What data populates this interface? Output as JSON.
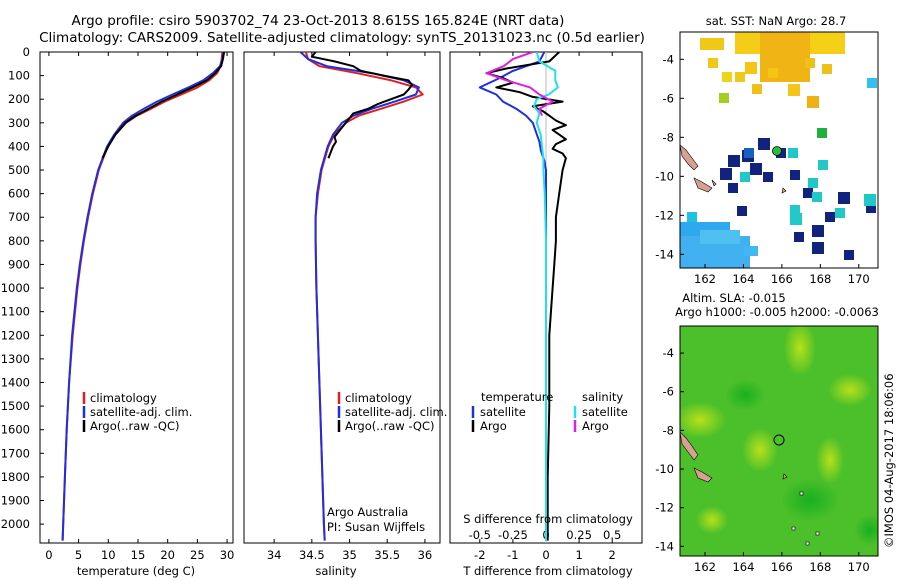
{
  "header": {
    "line1": "Argo profile: csiro 5903702_74 23-Oct-2013 8.615S 165.824E (NRT data)",
    "line2": "Climatology: CARS2009. Satellite-adjusted climatology: synTS_20131023.nc (0.5d earlier)"
  },
  "colors": {
    "climatology": "#e02020",
    "satellite": "#1f2fe0",
    "argo": "#000000",
    "sat_salinity": "#20e0f0",
    "argo_salinity": "#e020e0"
  },
  "chart_data": [
    {
      "id": "temperature",
      "type": "line",
      "xlabel": "temperature (deg C)",
      "xlim": [
        -1.5,
        31
      ],
      "ylim": [
        2080,
        0
      ],
      "xticks": [
        0,
        5,
        10,
        15,
        20,
        25,
        30
      ],
      "yticks": [
        0,
        100,
        200,
        300,
        400,
        500,
        600,
        700,
        800,
        900,
        1000,
        1100,
        1200,
        1300,
        1400,
        1500,
        1600,
        1700,
        1800,
        1900,
        2000
      ],
      "legend": [
        "climatology",
        "satellite-adj. clim.",
        "Argo(..raw -QC)"
      ],
      "series": [
        {
          "name": "climatology",
          "color": "#e02020",
          "depth": [
            0,
            30,
            60,
            90,
            120,
            150,
            180,
            210,
            240,
            270,
            300,
            350,
            400,
            500,
            600,
            700,
            800,
            900,
            1000,
            1200,
            1400,
            1600,
            1800,
            2000,
            2070
          ],
          "values": [
            29.2,
            29.1,
            28.9,
            28.3,
            27.0,
            25.0,
            22.3,
            19.5,
            17.2,
            14.8,
            13.0,
            11.2,
            9.9,
            8.4,
            7.4,
            6.6,
            5.9,
            5.3,
            4.8,
            4.0,
            3.4,
            3.0,
            2.7,
            2.4,
            2.3
          ]
        },
        {
          "name": "satellite-adj. clim.",
          "color": "#1f2fe0",
          "depth": [
            0,
            30,
            60,
            90,
            120,
            150,
            180,
            210,
            240,
            270,
            300,
            350,
            400,
            500,
            600,
            700,
            800,
            900,
            1000,
            1200,
            1400,
            1600,
            1800,
            2000,
            2070
          ],
          "values": [
            29.4,
            29.2,
            28.8,
            27.6,
            26.0,
            23.5,
            20.8,
            18.2,
            16.0,
            14.0,
            12.5,
            11.0,
            9.8,
            8.3,
            7.3,
            6.5,
            5.8,
            5.2,
            4.7,
            3.9,
            3.4,
            3.0,
            2.7,
            2.4,
            2.3
          ]
        },
        {
          "name": "Argo(..raw -QC)",
          "color": "#000000",
          "depth": [
            0,
            30,
            60,
            90,
            120,
            150,
            180,
            210,
            240,
            270,
            300,
            350,
            400,
            450
          ],
          "values": [
            29.5,
            29.3,
            29.0,
            28.0,
            26.6,
            24.2,
            21.6,
            19.0,
            16.8,
            14.6,
            12.9,
            11.2,
            10.0,
            9.0
          ]
        }
      ]
    },
    {
      "id": "salinity",
      "type": "line",
      "xlabel": "salinity",
      "xlim": [
        33.6,
        36.2
      ],
      "ylim": [
        2080,
        0
      ],
      "xticks": [
        34,
        34.5,
        35,
        35.5,
        36
      ],
      "xticklabels": [
        "34",
        "34.5",
        "35",
        "35.5",
        "36"
      ],
      "legend": [
        "climatology",
        "satellite-adj. clim.",
        "Argo(..raw -QC)"
      ],
      "credit": [
        "Argo Australia",
        "PI: Susan Wijffels"
      ],
      "series": [
        {
          "name": "climatology",
          "color": "#e02020",
          "depth": [
            0,
            30,
            60,
            90,
            120,
            150,
            180,
            210,
            240,
            270,
            300,
            350,
            400,
            500,
            600,
            700,
            800,
            1000,
            1200,
            1400,
            1600,
            1800,
            2000,
            2070
          ],
          "values": [
            34.42,
            34.45,
            34.6,
            35.1,
            35.55,
            35.88,
            35.97,
            35.72,
            35.42,
            35.12,
            34.95,
            34.8,
            34.72,
            34.63,
            34.58,
            34.55,
            34.55,
            34.56,
            34.58,
            34.6,
            34.62,
            34.64,
            34.66,
            34.67
          ]
        },
        {
          "name": "satellite-adj. clim.",
          "color": "#1f2fe0",
          "depth": [
            0,
            30,
            60,
            90,
            120,
            150,
            180,
            210,
            240,
            270,
            300,
            350,
            400,
            500,
            600,
            700,
            800,
            1000,
            1200,
            1400,
            1600,
            1800,
            2000,
            2070
          ],
          "values": [
            34.35,
            34.45,
            34.7,
            35.3,
            35.72,
            35.92,
            35.88,
            35.6,
            35.3,
            35.05,
            34.9,
            34.78,
            34.71,
            34.62,
            34.57,
            34.55,
            34.55,
            34.56,
            34.58,
            34.6,
            34.62,
            34.64,
            34.66,
            34.67
          ]
        },
        {
          "name": "Argo(..raw -QC)",
          "color": "#000000",
          "depth": [
            0,
            20,
            40,
            60,
            80,
            100,
            120,
            140,
            160,
            180,
            200,
            220,
            240,
            260,
            280,
            300,
            320,
            340,
            360,
            380,
            400,
            450
          ],
          "values": [
            34.55,
            34.5,
            34.8,
            35.05,
            35.15,
            35.45,
            35.78,
            35.83,
            35.78,
            35.72,
            35.55,
            35.38,
            35.25,
            35.05,
            35.0,
            34.95,
            34.9,
            34.85,
            34.8,
            34.82,
            34.78,
            34.72
          ]
        }
      ]
    },
    {
      "id": "difference",
      "type": "line",
      "xlabel": "T difference from climatology",
      "xlabel_top": "S difference from climatology",
      "xlim": [
        -2.9,
        2.9
      ],
      "ylim": [
        2080,
        0
      ],
      "xticks_T": [
        -2,
        -1,
        0,
        1,
        2
      ],
      "xticks_S": [
        "-0.5",
        "-0.25",
        "0",
        "0.25",
        "0.5"
      ],
      "xticks_S_values": [
        -0.5,
        -0.25,
        0,
        0.25,
        0.5
      ],
      "legend_titles": [
        "temperature",
        "salinity"
      ],
      "legend": [
        "satellite",
        "Argo",
        "satellite",
        "Argo"
      ],
      "series": [
        {
          "name": "temperature satellite",
          "color": "#1f2fe0",
          "depth": [
            0,
            40,
            80,
            110,
            150,
            180,
            210,
            240,
            270,
            300,
            340,
            380,
            420,
            460,
            500,
            600,
            700,
            800,
            1000,
            1500,
            2070
          ],
          "values": [
            -0.05,
            -0.2,
            -1.0,
            -1.4,
            -2.0,
            -1.5,
            -1.3,
            -0.9,
            -0.6,
            -0.4,
            -0.3,
            -0.2,
            -0.15,
            -0.05,
            0.0,
            0.0,
            0.0,
            0.0,
            0.0,
            0.0,
            0.0
          ]
        },
        {
          "name": "temperature Argo",
          "color": "#000000",
          "depth": [
            0,
            40,
            70,
            90,
            110,
            130,
            150,
            170,
            190,
            210,
            230,
            250,
            270,
            290,
            310,
            330,
            350,
            370,
            390,
            410,
            430,
            450,
            500,
            550,
            600,
            700,
            800,
            900,
            1000,
            1200,
            1500,
            1800,
            2070
          ],
          "values": [
            0.4,
            0.1,
            -1.2,
            -1.8,
            -1.3,
            -1.0,
            -1.5,
            -0.8,
            -0.4,
            0.5,
            -0.4,
            -0.1,
            0.1,
            0.3,
            0.6,
            0.2,
            0.4,
            0.6,
            0.3,
            0.2,
            0.5,
            0.6,
            0.5,
            0.45,
            0.4,
            0.3,
            0.3,
            0.25,
            0.2,
            0.1,
            0.1,
            0.05,
            0.05
          ]
        },
        {
          "name": "salinity satellite",
          "color": "#20e0f0",
          "depth": [
            0,
            40,
            80,
            120,
            150,
            180,
            200,
            230,
            260,
            300,
            350,
            400,
            450,
            500,
            600,
            800,
            1000,
            1500,
            2070
          ],
          "values": [
            -0.07,
            -0.05,
            0.07,
            0.07,
            0.09,
            0.02,
            -0.07,
            -0.09,
            -0.05,
            -0.07,
            -0.04,
            -0.03,
            -0.02,
            -0.02,
            -0.01,
            0.0,
            0.0,
            0.0,
            0.0
          ]
        },
        {
          "name": "salinity Argo",
          "color": "#e020e0",
          "depth": [
            0,
            30,
            60,
            90,
            120,
            150,
            180,
            210,
            240,
            270
          ],
          "values": [
            -0.1,
            -0.25,
            -0.32,
            -0.45,
            -0.3,
            -0.12,
            -0.05,
            0.05,
            -0.05,
            -0.03
          ]
        }
      ]
    }
  ],
  "maps": {
    "sst": {
      "title": "sat. SST: NaN Argo: 28.7",
      "xticks": [
        "162",
        "164",
        "166",
        "168",
        "170"
      ],
      "yticks": [
        "-4",
        "-6",
        "-8",
        "-10",
        "-12",
        "-14"
      ]
    },
    "sla": {
      "title1": "Altim. SLA: -0.015",
      "title2": "Argo h1000: -0.005 h2000: -0.0063",
      "xticks": [
        "162",
        "164",
        "166",
        "168",
        "170"
      ],
      "yticks": [
        "-4",
        "-6",
        "-8",
        "-10",
        "-12",
        "-14"
      ]
    }
  },
  "footer": {
    "stamp": "©IMOS 04-Aug-2017 18:06:06"
  }
}
